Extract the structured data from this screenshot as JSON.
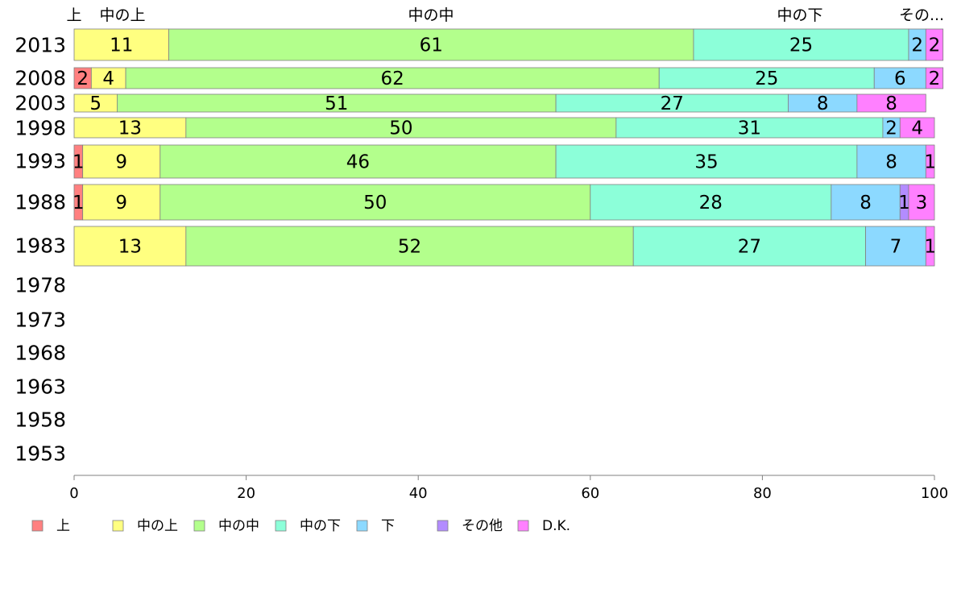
{
  "chart_data": {
    "type": "bar",
    "orientation": "horizontal",
    "stacked": true,
    "xlim": [
      0,
      100
    ],
    "x_ticks": [
      0,
      20,
      40,
      60,
      80,
      100
    ],
    "top_labels": [
      "上",
      "中の上",
      "中の中",
      "中の下",
      "その..."
    ],
    "categories": [
      "2013",
      "2008",
      "2003",
      "1998",
      "1993",
      "1988",
      "1983",
      "1978",
      "1973",
      "1968",
      "1963",
      "1958",
      "1953"
    ],
    "series": [
      {
        "name": "上",
        "color": "#ff8080",
        "values": [
          0,
          2,
          0,
          0,
          1,
          1,
          0,
          null,
          null,
          null,
          null,
          null,
          null
        ],
        "labels": [
          "",
          "2",
          "",
          "",
          "1",
          "1",
          "",
          "",
          "",
          "",
          "",
          "",
          ""
        ]
      },
      {
        "name": "中の上",
        "color": "#ffff80",
        "values": [
          11,
          4,
          5,
          13,
          9,
          9,
          13,
          null,
          null,
          null,
          null,
          null,
          null
        ],
        "labels": [
          "11",
          "4",
          "5",
          "13",
          "9",
          "9",
          "13",
          "",
          "",
          "",
          "",
          "",
          ""
        ]
      },
      {
        "name": "中の中",
        "color": "#b3ff8c",
        "values": [
          61,
          62,
          51,
          50,
          46,
          50,
          52,
          null,
          null,
          null,
          null,
          null,
          null
        ],
        "labels": [
          "61",
          "62",
          "51",
          "50",
          "46",
          "50",
          "52",
          "",
          "",
          "",
          "",
          "",
          ""
        ]
      },
      {
        "name": "中の下",
        "color": "#8cffd9",
        "values": [
          25,
          25,
          27,
          31,
          35,
          28,
          27,
          null,
          null,
          null,
          null,
          null,
          null
        ],
        "labels": [
          "25",
          "25",
          "27",
          "31",
          "35",
          "28",
          "27",
          "",
          "",
          "",
          "",
          "",
          ""
        ]
      },
      {
        "name": "下",
        "color": "#8cd9ff",
        "values": [
          2,
          6,
          8,
          2,
          8,
          8,
          7,
          null,
          null,
          null,
          null,
          null,
          null
        ],
        "labels": [
          "2",
          "6",
          "8",
          "2",
          "8",
          "8",
          "7",
          "",
          "",
          "",
          "",
          "",
          ""
        ]
      },
      {
        "name": "その他",
        "color": "#b38cff",
        "values": [
          0,
          0,
          0,
          0,
          0,
          1,
          0,
          null,
          null,
          null,
          null,
          null,
          null
        ],
        "labels": [
          "",
          "",
          "",
          "",
          "",
          "1",
          "",
          "",
          "",
          "",
          "",
          "",
          ""
        ]
      },
      {
        "name": "D.K.",
        "color": "#ff80ff",
        "values": [
          2,
          2,
          8,
          4,
          1,
          3,
          1,
          null,
          null,
          null,
          null,
          null,
          null
        ],
        "labels": [
          "2",
          "2",
          "8",
          "4",
          "1",
          "3",
          "1",
          "",
          "",
          "",
          "",
          "",
          ""
        ]
      }
    ],
    "legend": {
      "position": "bottom-left"
    },
    "grid": false
  }
}
